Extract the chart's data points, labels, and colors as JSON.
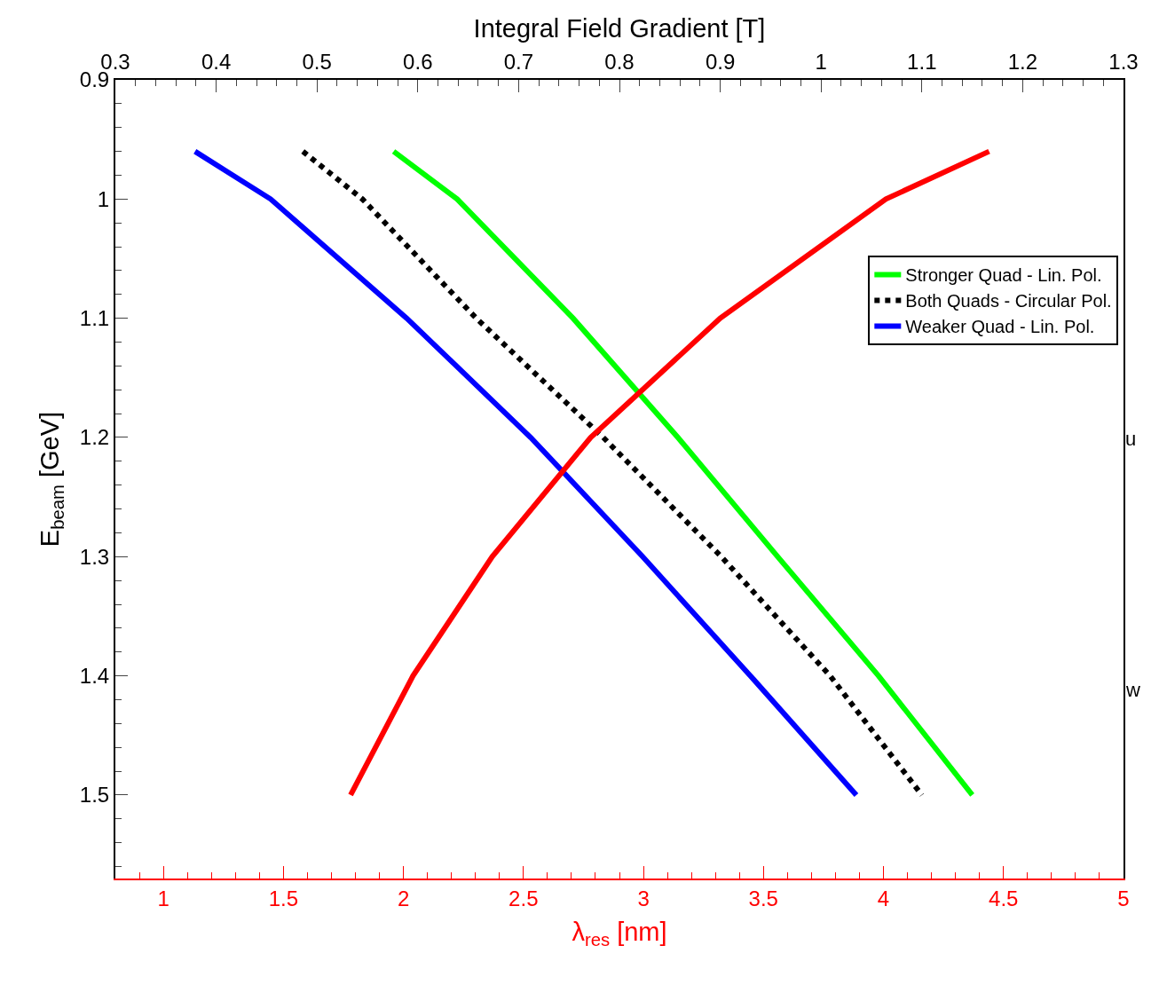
{
  "chart_data": {
    "type": "line",
    "xlabel": "Integral Field Gradient [T]",
    "x2label": "λ$_{res}$ [nm]",
    "ylabel": "E$_{beam}$ [GeV]",
    "xlim": [
      0.3,
      1.3
    ],
    "xticks": [
      0.3,
      0.4,
      0.5,
      0.6,
      0.7,
      0.8,
      0.9,
      1,
      1.1,
      1.2,
      1.3
    ],
    "x2lim": [
      0.8,
      5
    ],
    "x2ticks": [
      1,
      1.5,
      2,
      2.5,
      3,
      3.5,
      4,
      4.5,
      5
    ],
    "ylim": [
      1.57,
      0.9
    ],
    "yticks": [
      0.9,
      1,
      1.1,
      1.2,
      1.3,
      1.4,
      1.5
    ],
    "series": [
      {
        "name": "Stronger Quad - Lin. Pol.",
        "color": "#00ff00",
        "line_style": "solid",
        "x": [
          0.576,
          0.639,
          0.754,
          0.858,
          0.957,
          1.057,
          1.15
        ],
        "values": [
          0.96,
          1.0,
          1.1,
          1.2,
          1.3,
          1.4,
          1.5
        ]
      },
      {
        "name": "Both Quads - Circular Pol.",
        "color": "#000000",
        "line_style": "dotted",
        "x": [
          0.486,
          0.545,
          0.658,
          0.784,
          0.901,
          1.009,
          1.1
        ],
        "values": [
          0.96,
          1.0,
          1.1,
          1.2,
          1.3,
          1.4,
          1.5
        ]
      },
      {
        "name": "Weaker Quad - Lin. Pol.",
        "color": "#0000ff",
        "line_style": "solid",
        "x": [
          0.379,
          0.454,
          0.589,
          0.712,
          0.823,
          0.93,
          1.035
        ],
        "values": [
          0.96,
          1.0,
          1.1,
          1.2,
          1.3,
          1.4,
          1.5
        ]
      },
      {
        "color": "#ff0000",
        "axis": "x2",
        "line_style": "solid",
        "x": [
          4.44,
          4.01,
          3.32,
          2.78,
          2.37,
          2.04,
          1.78
        ],
        "values": [
          0.96,
          1.0,
          1.1,
          1.2,
          1.3,
          1.4,
          1.5
        ]
      }
    ],
    "annotations": [
      "u",
      "w"
    ],
    "legend": "right",
    "marker": "none"
  }
}
